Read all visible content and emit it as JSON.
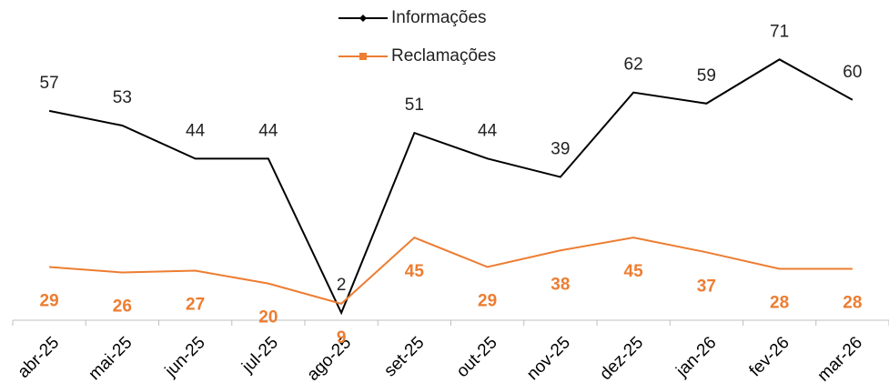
{
  "chart_data": {
    "type": "line",
    "categories": [
      "abr-25",
      "mai-25",
      "jun-25",
      "jul-25",
      "ago-25",
      "set-25",
      "out-25",
      "nov-25",
      "dez-25",
      "jan-26",
      "fev-26",
      "mar-26"
    ],
    "series": [
      {
        "name": "Informações",
        "color": "#000000",
        "values": [
          57,
          53,
          44,
          44,
          2,
          51,
          44,
          39,
          62,
          59,
          71,
          60
        ]
      },
      {
        "name": "Reclamações",
        "color": "#ed7d31",
        "axis": "y2",
        "values": [
          29,
          26,
          27,
          20,
          9,
          45,
          29,
          38,
          45,
          37,
          28,
          28
        ]
      }
    ],
    "ylim": [
      0,
      80
    ],
    "y2lim": [
      0,
      160
    ],
    "legend": "top"
  }
}
